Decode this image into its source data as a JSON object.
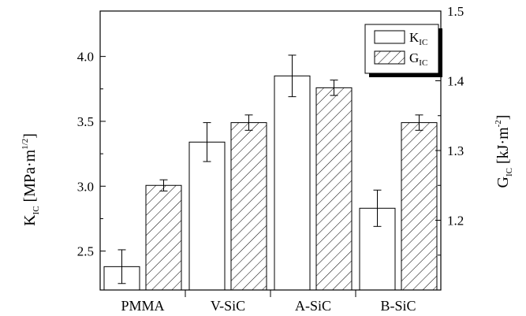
{
  "chart_data": {
    "type": "bar",
    "categories": [
      "PMMA",
      "V-SiC",
      "A-SiC",
      "B-SiC"
    ],
    "series": [
      {
        "name": "K_IC",
        "axis": "left",
        "values": [
          2.38,
          3.34,
          3.85,
          2.83
        ],
        "errors": [
          0.13,
          0.15,
          0.16,
          0.14
        ],
        "fill": "none"
      },
      {
        "name": "G_IC",
        "axis": "right",
        "values": [
          1.25,
          1.34,
          1.39,
          1.34
        ],
        "errors": [
          0.008,
          0.011,
          0.011,
          0.011
        ],
        "fill": "hatched"
      }
    ],
    "y_left": {
      "label_main": "K",
      "label_sub": "IC",
      "label_unit": " [MPa·m",
      "label_sup": "1/2",
      "label_close": "]",
      "range": [
        2.2,
        4.35
      ],
      "ticks": [
        "2.5",
        "3.0",
        "3.5",
        "4.0"
      ],
      "tick_values": [
        2.5,
        3.0,
        3.5,
        4.0
      ]
    },
    "y_right": {
      "label_main": "G",
      "label_sub": "IC",
      "label_unit": " [kJ·m",
      "label_sup": "-2",
      "label_close": "]",
      "range": [
        1.1,
        1.5
      ],
      "ticks": [
        "1.2",
        "1.3",
        "1.4",
        "1.5"
      ],
      "tick_values": [
        1.2,
        1.3,
        1.4,
        1.5
      ]
    },
    "legend": {
      "position": "top-right",
      "entries": [
        {
          "main": "K",
          "sub": "IC"
        },
        {
          "main": "G",
          "sub": "IC"
        }
      ]
    },
    "grid": false
  },
  "colors": {
    "stroke": "#000000",
    "background": "#ffffff",
    "legend_shadow": "#000000"
  }
}
